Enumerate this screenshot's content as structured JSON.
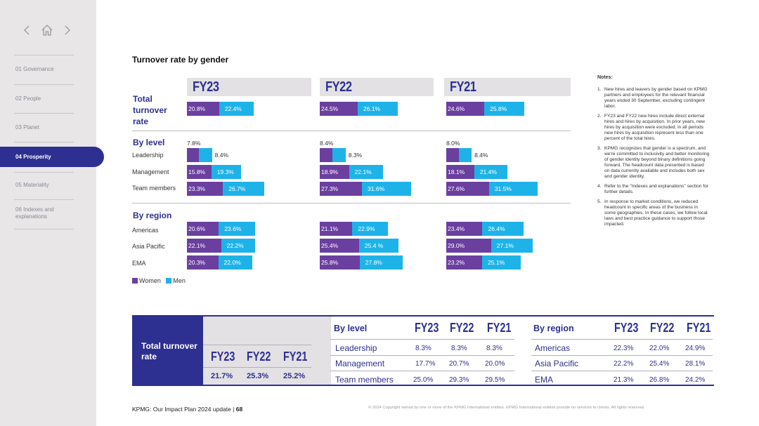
{
  "sidebar": {
    "items": [
      {
        "label": "01  Governance"
      },
      {
        "label": "02  People"
      },
      {
        "label": "03  Planet"
      },
      {
        "label": "04  Prosperity"
      },
      {
        "label": "05  Materiality"
      },
      {
        "label": "06  Indexes and explanations"
      }
    ],
    "active_index": 3
  },
  "title": "Turnover rate by gender",
  "years": [
    "FY23",
    "FY22",
    "FY21"
  ],
  "sections": {
    "total": "Total turnover rate",
    "level": "By level",
    "region": "By region"
  },
  "chart_data": {
    "type": "bar",
    "subtype": "stacked-horizontal",
    "title": "Turnover rate by gender",
    "legend": [
      "Women",
      "Men"
    ],
    "colors": {
      "Women": "#6b3fa0",
      "Men": "#1eb3e8"
    },
    "groups": [
      {
        "year": "FY23",
        "total": {
          "women": "20.8%",
          "men": "22.4%"
        },
        "level": [
          {
            "name": "Leadership",
            "women": "7.8%",
            "men": "8.4%"
          },
          {
            "name": "Management",
            "women": "15.8%",
            "men": "19.3%"
          },
          {
            "name": "Team members",
            "women": "23.3%",
            "men": "26.7%"
          }
        ],
        "region": [
          {
            "name": "Americas",
            "women": "20.6%",
            "men": "23.6%"
          },
          {
            "name": "Asia Pacific",
            "women": "22.1%",
            "men": "22.2%"
          },
          {
            "name": "EMA",
            "women": "20.3%",
            "men": "22.0%"
          }
        ]
      },
      {
        "year": "FY22",
        "total": {
          "women": "24.5%",
          "men": "26.1%"
        },
        "level": [
          {
            "name": "Leadership",
            "women": "8.4%",
            "men": "8.3%"
          },
          {
            "name": "Management",
            "women": "18.9%",
            "men": "22.1%"
          },
          {
            "name": "Team members",
            "women": "27.3%",
            "men": "31.6%"
          }
        ],
        "region": [
          {
            "name": "Americas",
            "women": "21.1%",
            "men": "22.9%"
          },
          {
            "name": "Asia Pacific",
            "women": "25.4%",
            "men": "25.4 %"
          },
          {
            "name": "EMA",
            "women": "25.8%",
            "men": "27.8%"
          }
        ]
      },
      {
        "year": "FY21",
        "total": {
          "women": "24.6%",
          "men": "25.8%"
        },
        "level": [
          {
            "name": "Leadership",
            "women": "8.0%",
            "men": "8.4%"
          },
          {
            "name": "Management",
            "women": "18.1%",
            "men": "21.4%"
          },
          {
            "name": "Team members",
            "women": "27.6%",
            "men": "31.5%"
          }
        ],
        "region": [
          {
            "name": "Americas",
            "women": "23.4%",
            "men": "26.4%"
          },
          {
            "name": "Asia Pacific",
            "women": "29.0%",
            "men": "27.1%"
          },
          {
            "name": "EMA",
            "women": "23.2%",
            "men": "25.1%"
          }
        ]
      }
    ]
  },
  "notes": {
    "heading": "Notes:",
    "items": [
      "New hires and leavers by gender based on KPMG partners and employees for the relevant financial years ended 30 September, excluding contingent labor.",
      "FY23 and FY22 new hires include direct external hires and hires by acquisition. In prior years, new hires by acquisition were excluded, in all periods new hires by acquisition represent less than one percent of the total hires.",
      "KPMG recognizes that gender is a spectrum, and we're committed to inclusivity and better monitoring of gender identity beyond binary definitions going forward. The headcount data presented is based on data currently available and includes both sex and gender identity.",
      "Refer to the \"Indexes and explanations\" section for further details.",
      "In response to market conditions, we reduced headcount in specific areas of the business in some geographies. In these cases, we follow local laws and best practice guidance to support those impacted."
    ]
  },
  "summary": {
    "label": "Total turnover rate",
    "total_values": [
      "21.7%",
      "25.3%",
      "25.2%"
    ],
    "by_level": {
      "heading": "By level",
      "rows": [
        {
          "name": "Leadership",
          "values": [
            "8.3%",
            "8.3%",
            "8.3%"
          ]
        },
        {
          "name": "Management",
          "values": [
            "17.7%",
            "20.7%",
            "20.0%"
          ]
        },
        {
          "name": "Team members",
          "values": [
            "25.0%",
            "29.3%",
            "29.5%"
          ]
        }
      ]
    },
    "by_region": {
      "heading": "By region",
      "rows": [
        {
          "name": "Americas",
          "values": [
            "22.3%",
            "22.0%",
            "24.9%"
          ]
        },
        {
          "name": "Asia Pacific",
          "values": [
            "22.2%",
            "25.4%",
            "28.1%"
          ]
        },
        {
          "name": "EMA",
          "values": [
            "21.3%",
            "26.8%",
            "24.2%"
          ]
        }
      ]
    }
  },
  "footer": {
    "left": "KPMG: Our Impact Plan 2024 update  |  ",
    "page": "68",
    "copyright": "© 2024 Copyright owned by one or more of the KPMG International entities. KPMG International entities provide no services to clients. All rights reserved."
  }
}
